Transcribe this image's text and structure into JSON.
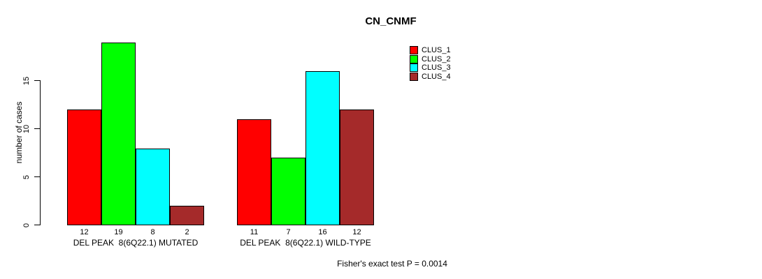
{
  "page": {
    "background": "#ffffff"
  },
  "chart_data": {
    "type": "bar",
    "title": "CN_CNMF",
    "ylabel": "number of cases",
    "xlabel": "",
    "ylim": [
      0,
      19
    ],
    "yticks": [
      0,
      5,
      10,
      15
    ],
    "grid": false,
    "legend_position": "right-outside",
    "categories": [
      "DEL PEAK  8(6Q22.1) MUTATED",
      "DEL PEAK  8(6Q22.1) WILD-TYPE"
    ],
    "series": [
      {
        "name": "CLUS_1",
        "color": "#ff0000",
        "values": [
          12,
          11
        ]
      },
      {
        "name": "CLUS_2",
        "color": "#00ff00",
        "values": [
          19,
          7
        ]
      },
      {
        "name": "CLUS_3",
        "color": "#00ffff",
        "values": [
          8,
          16
        ]
      },
      {
        "name": "CLUS_4",
        "color": "#a52a2a",
        "values": [
          2,
          12
        ]
      }
    ],
    "bar_value_labels": [
      [
        12,
        19,
        8,
        2
      ],
      [
        11,
        7,
        16,
        12
      ]
    ],
    "footnote": "Fisher's exact test P = 0.0014"
  }
}
